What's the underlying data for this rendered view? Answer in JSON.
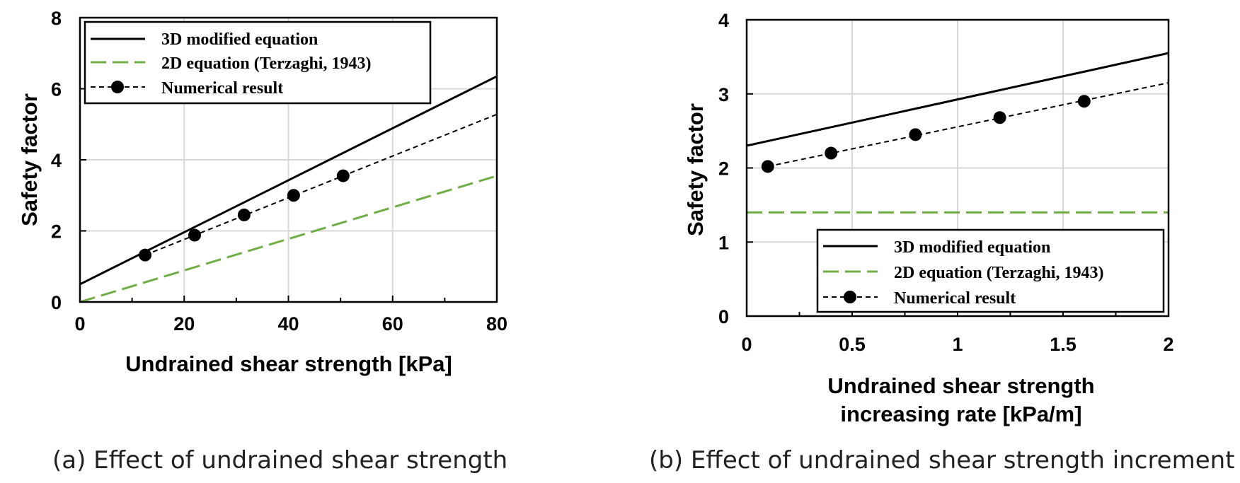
{
  "chart_data": [
    {
      "type": "line",
      "panel": "a",
      "caption": "(a) Effect of undrained shear strength",
      "xlabel": "Undrained shear strength [kPa]",
      "ylabel": "Safety factor",
      "xlim": [
        0,
        80
      ],
      "ylim": [
        0,
        8
      ],
      "xticks": [
        0,
        20,
        40,
        60,
        80
      ],
      "yticks": [
        0,
        2,
        4,
        6,
        8
      ],
      "x_minor_step": 10,
      "grid": true,
      "legend_position": "top-left",
      "series": [
        {
          "name": "3D modified equation",
          "style": "solid",
          "color": "#000000",
          "x": [
            0,
            80
          ],
          "y": [
            0.5,
            6.35
          ]
        },
        {
          "name": "2D equation (Terzaghi, 1943)",
          "style": "dashed",
          "color": "#70ad47",
          "x": [
            0,
            80
          ],
          "y": [
            0,
            3.55
          ]
        },
        {
          "name": "Numerical result",
          "style": "dashed-markers",
          "color": "#000000",
          "x": [
            12.5,
            22,
            31.5,
            41,
            50.5
          ],
          "y": [
            1.32,
            1.88,
            2.45,
            3.0,
            3.55
          ],
          "trend": {
            "x": [
              12.5,
              80
            ],
            "y": [
              1.32,
              5.28
            ]
          }
        }
      ]
    },
    {
      "type": "line",
      "panel": "b",
      "caption": "(b) Effect of undrained shear strength increment",
      "xlabel_lines": [
        "Undrained shear strength",
        "increasing rate [kPa/m]"
      ],
      "ylabel": "Safety factor",
      "xlim": [
        0,
        2
      ],
      "ylim": [
        0,
        4
      ],
      "xticks": [
        0,
        0.5,
        1,
        1.5,
        2
      ],
      "xtick_labels": [
        "0",
        "0.5",
        "1",
        "1.5",
        "2"
      ],
      "yticks": [
        0,
        1,
        2,
        3,
        4
      ],
      "x_minor_step": 0.25,
      "grid": true,
      "legend_position": "bottom-right",
      "series": [
        {
          "name": "3D modified equation",
          "style": "solid",
          "color": "#000000",
          "x": [
            0,
            2
          ],
          "y": [
            2.3,
            3.55
          ]
        },
        {
          "name": "2D equation (Terzaghi, 1943)",
          "style": "dashed",
          "color": "#70ad47",
          "x": [
            0,
            2
          ],
          "y": [
            1.4,
            1.4
          ]
        },
        {
          "name": "Numerical result",
          "style": "dashed-markers",
          "color": "#000000",
          "x": [
            0.1,
            0.4,
            0.8,
            1.2,
            1.6
          ],
          "y": [
            2.02,
            2.2,
            2.45,
            2.68,
            2.9
          ],
          "trend": {
            "x": [
              0.1,
              2
            ],
            "y": [
              2.02,
              3.15
            ]
          }
        }
      ]
    }
  ]
}
